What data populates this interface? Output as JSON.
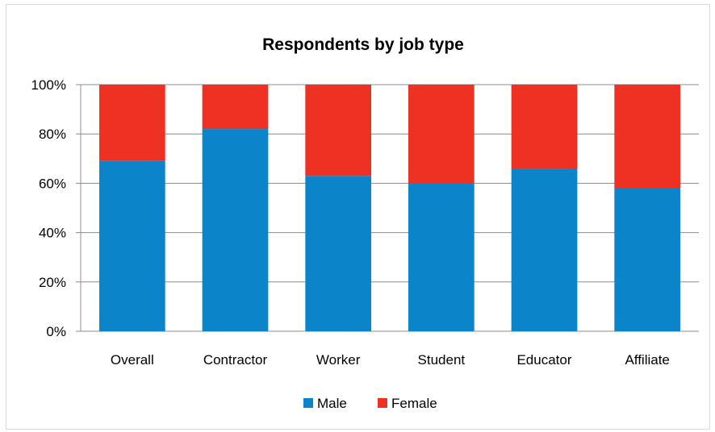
{
  "chart_data": {
    "type": "bar",
    "stacked": true,
    "title": "Respondents by job type",
    "categories": [
      "Overall",
      "Contractor",
      "Worker",
      "Student",
      "Educator",
      "Affiliate"
    ],
    "series": [
      {
        "name": "Male",
        "values": [
          69,
          82,
          63,
          60,
          66,
          58
        ],
        "color": "#0b84c9"
      },
      {
        "name": "Female",
        "values": [
          31,
          18,
          37,
          40,
          34,
          42
        ],
        "color": "#ee3123"
      }
    ],
    "ylim": [
      0,
      100
    ],
    "yticks": [
      "0%",
      "20%",
      "40%",
      "60%",
      "80%",
      "100%"
    ],
    "grid": true,
    "legend": "bottom"
  }
}
